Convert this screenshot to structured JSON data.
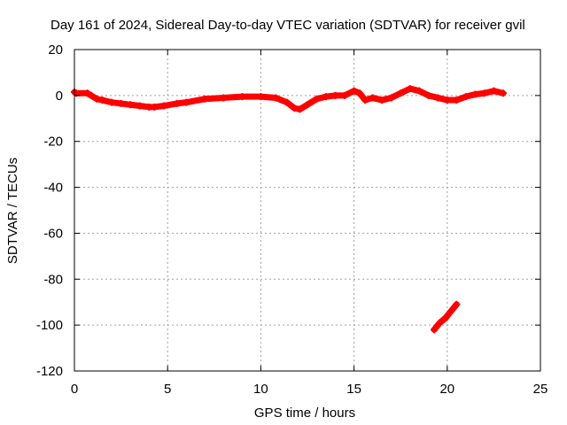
{
  "chart_data": {
    "type": "scatter",
    "title": "Day 161 of 2024, Sidereal Day-to-day VTEC variation (SDTVAR) for receiver gvil",
    "xlabel": "GPS time / hours",
    "ylabel": "SDTVAR / TECUs",
    "xlim": [
      0,
      25
    ],
    "ylim": [
      -120,
      20
    ],
    "xticks": [
      0,
      5,
      10,
      15,
      20,
      25
    ],
    "yticks": [
      20,
      0,
      -20,
      -40,
      -60,
      -80,
      -100,
      -120
    ],
    "grid": true,
    "legend": "none",
    "series": [
      {
        "color": "#ff0000",
        "marker": "plus",
        "segments": [
          {
            "x": [
              0.0,
              0.1,
              0.7,
              0.9,
              1.2,
              1.5,
              2.0,
              2.5,
              3.0,
              3.5,
              4.0,
              4.3,
              4.8,
              5.5,
              6.0,
              7.0,
              8.0,
              9.0,
              10.0,
              10.8,
              11.4,
              11.8,
              12.1,
              12.5,
              13.0,
              13.5,
              14.0,
              14.5,
              15.0,
              15.3,
              15.6,
              16.0,
              16.5,
              17.0,
              17.5,
              18.0,
              18.5,
              19.0,
              19.5,
              20.0,
              20.5,
              21.0,
              21.5,
              22.0,
              22.5,
              23.0
            ],
            "y": [
              1.5,
              1,
              1,
              0,
              -1.5,
              -2,
              -3,
              -3.5,
              -4,
              -4.5,
              -5,
              -5,
              -4.5,
              -3.5,
              -3,
              -1.5,
              -1,
              -0.5,
              -0.5,
              -1,
              -3,
              -5.5,
              -6,
              -4,
              -1.5,
              -0.5,
              0,
              0,
              2,
              1,
              -2,
              -1,
              -2,
              -1,
              1,
              3,
              2,
              0,
              -1,
              -2,
              -2,
              -0.5,
              0.5,
              1,
              2,
              1
            ]
          },
          {
            "x": [
              19.3,
              19.6,
              19.9,
              20.2,
              20.5
            ],
            "y": [
              -102,
              -99,
              -97,
              -94,
              -91
            ]
          }
        ]
      }
    ]
  }
}
